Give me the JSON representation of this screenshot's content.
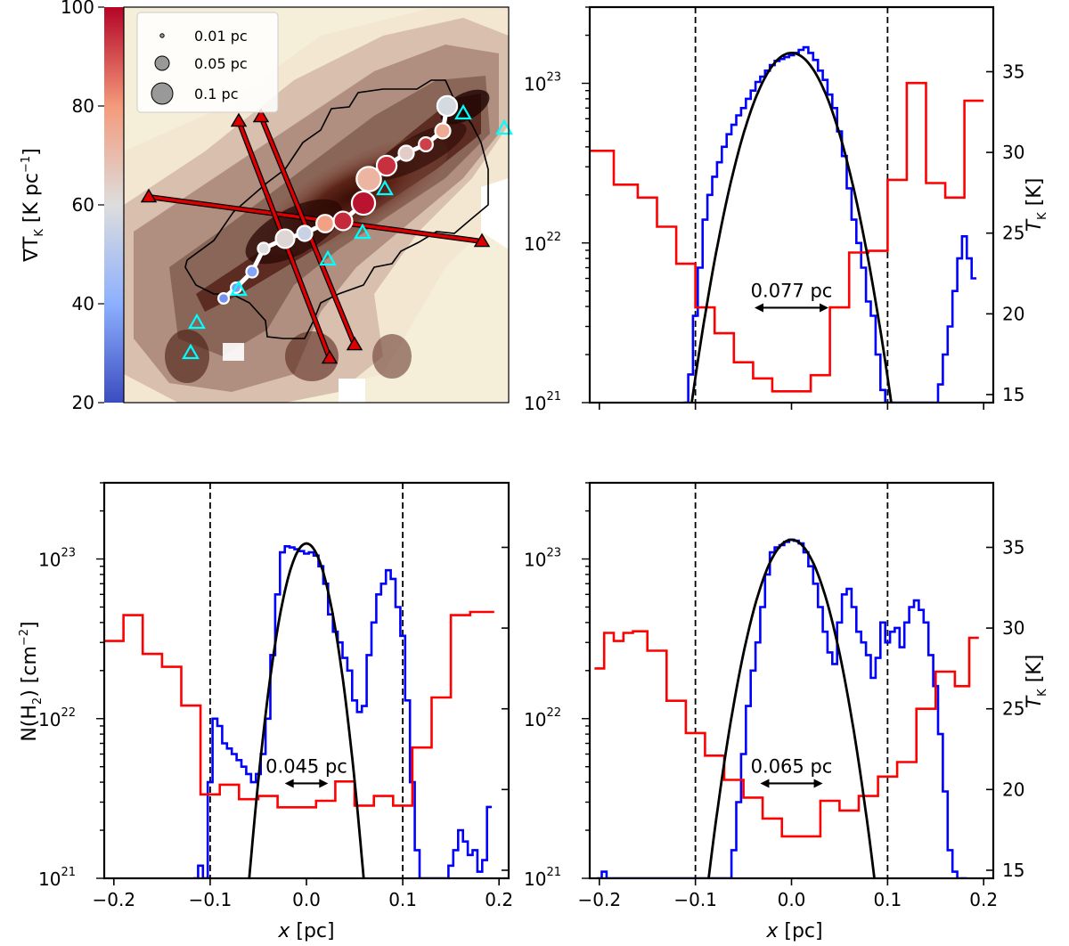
{
  "colorbar": {
    "label_symbol": "∇T",
    "label_sub": "K",
    "label_unit": " [K pc",
    "label_unit_sup": "−1",
    "label_unit_end": "]",
    "ticks": [
      20,
      40,
      60,
      80,
      100
    ],
    "range": [
      20,
      100
    ],
    "colors": [
      "#3b4cc0",
      "#8db0fe",
      "#dddddd",
      "#f49a7b",
      "#b40426"
    ]
  },
  "legend": {
    "entries": [
      {
        "label": "0.01 pc",
        "size_pc": 0.01
      },
      {
        "label": "0.05 pc",
        "size_pc": 0.05
      },
      {
        "label": "0.1 pc",
        "size_pc": 0.1
      }
    ]
  },
  "map_markers": {
    "spine_points": [
      {
        "gradT": 34,
        "width_pc": 0.03
      },
      {
        "gradT": 36,
        "width_pc": 0.03
      },
      {
        "gradT": 38,
        "width_pc": 0.035
      },
      {
        "gradT": 60,
        "width_pc": 0.035
      },
      {
        "gradT": 62,
        "width_pc": 0.065
      },
      {
        "gradT": 55,
        "width_pc": 0.05
      },
      {
        "gradT": 78,
        "width_pc": 0.06
      },
      {
        "gradT": 95,
        "width_pc": 0.065
      },
      {
        "gradT": 98,
        "width_pc": 0.085
      },
      {
        "gradT": 72,
        "width_pc": 0.09
      },
      {
        "gradT": 94,
        "width_pc": 0.07
      },
      {
        "gradT": 65,
        "width_pc": 0.05
      },
      {
        "gradT": 92,
        "width_pc": 0.045
      },
      {
        "gradT": 75,
        "width_pc": 0.05
      },
      {
        "gradT": 58,
        "width_pc": 0.07
      }
    ],
    "cut_count": 3,
    "core_marker_color": "#00ffff",
    "cut_color": "#dd0000"
  },
  "chart_data": [
    {
      "type": "line",
      "panel": "top-right",
      "annotation": "0.077 pc",
      "width_arrow": [
        -0.0385,
        0.0385
      ],
      "xlim": [
        -0.21,
        0.21
      ],
      "y_left_log": true,
      "ylim_left": [
        1e+21,
        3e+23
      ],
      "ylim_right": [
        14.5,
        39
      ],
      "yticks_left": [
        {
          "base": "10",
          "exp": "21"
        },
        {
          "base": "10",
          "exp": "22"
        },
        {
          "base": "10",
          "exp": "23"
        }
      ],
      "yticks_right": [
        15,
        20,
        25,
        30,
        35
      ],
      "ylabel_right_symbol": "T",
      "ylabel_right_sub": "K",
      "ylabel_right_unit": " [K]",
      "vlines": [
        -0.1,
        0.1
      ],
      "fit": {
        "peak": 1.55e+23,
        "center": 0.0,
        "fwhm": 0.077
      },
      "series": [
        {
          "color": "#0000ff",
          "x": [
            -0.11,
            -0.105,
            -0.1,
            -0.095,
            -0.09,
            -0.085,
            -0.08,
            -0.075,
            -0.07,
            -0.065,
            -0.06,
            -0.055,
            -0.05,
            -0.045,
            -0.04,
            -0.035,
            -0.03,
            -0.025,
            -0.02,
            -0.015,
            -0.01,
            -0.005,
            0.0,
            0.005,
            0.01,
            0.015,
            0.02,
            0.025,
            0.03,
            0.035,
            0.04,
            0.045,
            0.05,
            0.055,
            0.06,
            0.065,
            0.07,
            0.075,
            0.08,
            0.085,
            0.09,
            0.095,
            0.1,
            0.105,
            0.15,
            0.155,
            0.16,
            0.165,
            0.17,
            0.175,
            0.18,
            0.185,
            0.19
          ],
          "y": [
            1e+21,
            1.5e+21,
            3.5e+21,
            7e+21,
            1.4e+22,
            2e+22,
            2.6e+22,
            3.2e+22,
            4e+22,
            4.8e+22,
            5.5e+22,
            6.3e+22,
            7e+22,
            8e+22,
            9e+22,
            1.02e+23,
            1.1e+23,
            1.2e+23,
            1.3e+23,
            1.38e+23,
            1.42e+23,
            1.46e+23,
            1.5e+23,
            1.55e+23,
            1.62e+23,
            1.68e+23,
            1.55e+23,
            1.4e+23,
            1.2e+23,
            1.05e+23,
            8.5e+22,
            7e+22,
            5e+22,
            3.5e+22,
            2.2e+22,
            1.4e+22,
            1e+22,
            7e+21,
            4.3e+21,
            3.5e+21,
            2e+21,
            1.2e+21,
            1e+21,
            1e+21,
            1e+21,
            1.3e+21,
            2e+21,
            3e+21,
            5e+21,
            8e+21,
            1.1e+22,
            8e+21,
            6e+21
          ]
        },
        {
          "color": "#ff0000",
          "x": [
            -0.2,
            -0.17,
            -0.15,
            -0.13,
            -0.11,
            -0.09,
            -0.07,
            -0.05,
            -0.03,
            -0.01,
            0.01,
            0.03,
            0.05,
            0.07,
            0.09,
            0.11,
            0.13,
            0.15,
            0.17,
            0.19
          ],
          "T": [
            30.1,
            28.0,
            27.2,
            25.4,
            23.1,
            20.4,
            18.8,
            17.0,
            16.0,
            15.2,
            15.2,
            16.2,
            20.4,
            23.8,
            23.9,
            28.3,
            34.3,
            28.1,
            27.2,
            33.2
          ]
        }
      ]
    },
    {
      "type": "line",
      "panel": "bottom-left",
      "annotation": "0.045 pc",
      "width_arrow": [
        -0.0225,
        0.0225
      ],
      "xlim": [
        -0.21,
        0.21
      ],
      "xlabel": "x",
      "xlabel_unit": " [pc]",
      "xticks": [
        -0.2,
        -0.1,
        0.0,
        0.1,
        0.2
      ],
      "xtick_labels": [
        "−0.2",
        "−0.1",
        "0.0",
        "0.1",
        "0.2"
      ],
      "y_left_log": true,
      "ylim_left": [
        1e+21,
        3e+23
      ],
      "ylim_right": [
        14.5,
        39
      ],
      "yticks_left": [
        {
          "base": "10",
          "exp": "21"
        },
        {
          "base": "10",
          "exp": "22"
        },
        {
          "base": "10",
          "exp": "23"
        }
      ],
      "ylabel_left": "N(H",
      "ylabel_left_sub": "2",
      "ylabel_left_unit": ") [cm",
      "ylabel_left_sup": "−2",
      "ylabel_left_end": "]",
      "vlines": [
        -0.1,
        0.1
      ],
      "fit": {
        "peak": 1.25e+23,
        "center": 0.0,
        "fwhm": 0.045
      },
      "series": [
        {
          "color": "#0000ff",
          "x": [
            -0.115,
            -0.11,
            -0.105,
            -0.1,
            -0.095,
            -0.09,
            -0.085,
            -0.08,
            -0.075,
            -0.07,
            -0.065,
            -0.06,
            -0.055,
            -0.05,
            -0.045,
            -0.04,
            -0.035,
            -0.03,
            -0.025,
            -0.02,
            -0.015,
            -0.01,
            -0.005,
            0.0,
            0.005,
            0.01,
            0.015,
            0.02,
            0.025,
            0.03,
            0.035,
            0.04,
            0.045,
            0.05,
            0.055,
            0.06,
            0.065,
            0.07,
            0.075,
            0.08,
            0.085,
            0.09,
            0.095,
            0.1,
            0.105,
            0.11,
            0.115,
            0.12,
            0.125,
            0.13,
            0.135,
            0.14,
            0.145,
            0.15,
            0.155,
            0.16,
            0.165,
            0.17,
            0.175,
            0.18,
            0.185,
            0.19
          ],
          "y": [
            1e+21,
            1.2e+21,
            1e+21,
            4e+21,
            1e+22,
            9e+21,
            7e+21,
            6.5e+21,
            6e+21,
            5.5e+21,
            5e+21,
            4.5e+21,
            4e+21,
            4.5e+21,
            6e+21,
            1e+22,
            2.5e+22,
            6e+22,
            1.1e+23,
            1.2e+23,
            1.18e+23,
            1.15e+23,
            1.12e+23,
            1.08e+23,
            1.1e+23,
            1.05e+23,
            9e+22,
            7e+22,
            4.5e+22,
            3.5e+22,
            3e+22,
            2.4e+22,
            2e+22,
            1.3e+22,
            1.1e+22,
            1.2e+22,
            2.5e+22,
            4e+22,
            6e+22,
            7e+22,
            8.5e+22,
            7.5e+22,
            5e+22,
            3.3e+22,
            1.3e+22,
            4e+21,
            1.5e+21,
            1e+21,
            1e+21,
            1e+21,
            1e+21,
            1e+21,
            1e+21,
            1.2e+21,
            1.5e+21,
            2e+21,
            1.7e+21,
            1.4e+21,
            1.5e+21,
            1.1e+21,
            1.3e+21,
            2.8e+21
          ]
        },
        {
          "color": "#ff0000",
          "x": [
            -0.2,
            -0.18,
            -0.16,
            -0.14,
            -0.12,
            -0.1,
            -0.08,
            -0.06,
            -0.04,
            -0.02,
            0.0,
            0.02,
            0.04,
            0.06,
            0.08,
            0.1,
            0.12,
            0.14,
            0.16,
            0.18,
            0.19
          ],
          "T": [
            29.2,
            30.8,
            28.4,
            27.6,
            25.2,
            19.7,
            20.3,
            19.4,
            19.6,
            18.9,
            18.9,
            19.3,
            20.5,
            19.0,
            19.6,
            19.0,
            22.6,
            25.7,
            30.8,
            31.0,
            31.0
          ]
        }
      ]
    },
    {
      "type": "line",
      "panel": "bottom-right",
      "annotation": "0.065 pc",
      "width_arrow": [
        -0.0325,
        0.0325
      ],
      "xlim": [
        -0.21,
        0.21
      ],
      "xlabel": "x",
      "xlabel_unit": " [pc]",
      "xticks": [
        -0.2,
        -0.1,
        0.0,
        0.1,
        0.2
      ],
      "xtick_labels": [
        "−0.2",
        "−0.1",
        "0.0",
        "0.1",
        "0.2"
      ],
      "y_left_log": true,
      "ylim_left": [
        1e+21,
        3e+23
      ],
      "ylim_right": [
        14.5,
        39
      ],
      "yticks_left": [
        {
          "base": "10",
          "exp": "21"
        },
        {
          "base": "10",
          "exp": "22"
        },
        {
          "base": "10",
          "exp": "23"
        }
      ],
      "yticks_right": [
        15,
        20,
        25,
        30,
        35
      ],
      "ylabel_right_symbol": "T",
      "ylabel_right_sub": "K",
      "ylabel_right_unit": " [K]",
      "vlines": [
        -0.1,
        0.1
      ],
      "fit": {
        "peak": 1.32e+23,
        "center": 0.0,
        "fwhm": 0.065
      },
      "series": [
        {
          "color": "#0000ff",
          "x": [
            -0.2,
            -0.195,
            -0.19,
            -0.065,
            -0.06,
            -0.055,
            -0.05,
            -0.045,
            -0.04,
            -0.035,
            -0.03,
            -0.025,
            -0.02,
            -0.015,
            -0.01,
            -0.005,
            0.0,
            0.005,
            0.01,
            0.015,
            0.02,
            0.025,
            0.03,
            0.035,
            0.04,
            0.045,
            0.05,
            0.055,
            0.06,
            0.065,
            0.07,
            0.075,
            0.08,
            0.085,
            0.09,
            0.095,
            0.1,
            0.105,
            0.11,
            0.115,
            0.12,
            0.125,
            0.13,
            0.135,
            0.14,
            0.145,
            0.15,
            0.155,
            0.16,
            0.165,
            0.17,
            0.175,
            0.18
          ],
          "y": [
            1e+21,
            1.1e+21,
            1e+21,
            1e+21,
            1.5e+21,
            3e+21,
            6e+21,
            1.2e+22,
            2e+22,
            3e+22,
            5e+22,
            8e+22,
            1.1e+23,
            1.18e+23,
            1.22e+23,
            1.28e+23,
            1.32e+23,
            1.3e+23,
            1.25e+23,
            1.1e+23,
            9e+22,
            7e+22,
            5e+22,
            3.5e+22,
            2.6e+22,
            2.2e+22,
            4e+22,
            6e+22,
            6.5e+22,
            5e+22,
            3.5e+22,
            3e+22,
            2.5e+22,
            1.8e+22,
            2.4e+22,
            4e+22,
            3e+22,
            3.5e+22,
            3.7e+22,
            2.8e+22,
            4e+22,
            5e+22,
            5.5e+22,
            4.8e+22,
            4e+22,
            2.5e+22,
            1.6e+22,
            8e+21,
            3.5e+21,
            1.5e+21,
            1.1e+21,
            1e+21,
            1e+21
          ]
        },
        {
          "color": "#ff0000",
          "x": [
            -0.2,
            -0.19,
            -0.18,
            -0.17,
            -0.16,
            -0.14,
            -0.12,
            -0.1,
            -0.08,
            -0.06,
            -0.04,
            -0.02,
            0.0,
            0.02,
            0.04,
            0.06,
            0.08,
            0.1,
            0.12,
            0.14,
            0.16,
            0.18,
            0.19
          ],
          "T": [
            27.5,
            29.7,
            29.2,
            29.7,
            29.8,
            28.6,
            25.5,
            23.5,
            22.1,
            20.6,
            19.5,
            18.2,
            17.1,
            17.1,
            19.3,
            18.7,
            19.6,
            20.8,
            21.7,
            25.0,
            27.3,
            26.4,
            29.4
          ]
        }
      ]
    }
  ]
}
